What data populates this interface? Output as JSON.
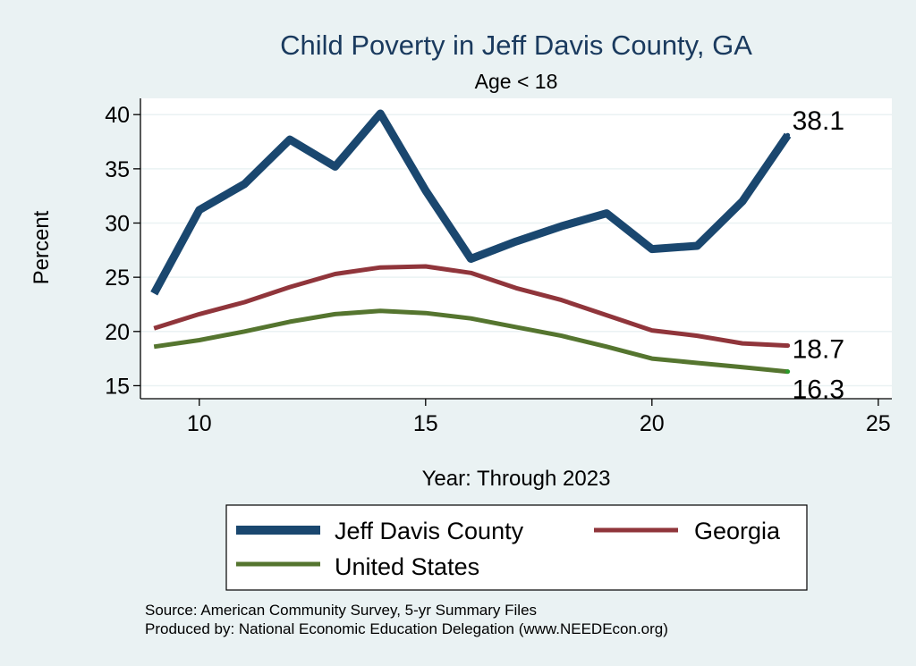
{
  "colors": {
    "background": "#eaf2f3",
    "plot_background": "#ffffff",
    "grid": "#eaf2f3",
    "jeff_davis": "#1a476f",
    "georgia": "#90353b",
    "united_states": "#55752f",
    "title": "#1a3a5e"
  },
  "chart_data": {
    "type": "line",
    "title": "Child Poverty in Jeff Davis County, GA",
    "subtitle": "Age < 18",
    "xlabel": "Year: Through 2023",
    "ylabel": "Percent",
    "xlim": [
      8.7,
      25.3
    ],
    "ylim": [
      13.8,
      41.5
    ],
    "xticks": [
      10,
      15,
      20,
      25
    ],
    "yticks": [
      15,
      20,
      25,
      30,
      35,
      40
    ],
    "x": [
      9,
      10,
      11,
      12,
      13,
      14,
      15,
      16,
      17,
      18,
      19,
      20,
      21,
      22,
      23
    ],
    "series": [
      {
        "name": "Jeff Davis County",
        "color": "#1a476f",
        "values": [
          23.5,
          31.2,
          33.6,
          37.7,
          35.2,
          40.1,
          33.0,
          26.7,
          28.3,
          29.7,
          30.9,
          27.6,
          27.9,
          32.0,
          38.1
        ],
        "end_label": "38.1"
      },
      {
        "name": "Georgia",
        "color": "#90353b",
        "values": [
          20.3,
          21.6,
          22.7,
          24.1,
          25.3,
          25.9,
          26.0,
          25.4,
          24.0,
          22.9,
          21.5,
          20.1,
          19.6,
          18.9,
          18.7
        ],
        "end_label": "18.7"
      },
      {
        "name": "United States",
        "color": "#55752f",
        "values": [
          18.6,
          19.2,
          20.0,
          20.9,
          21.6,
          21.9,
          21.7,
          21.2,
          20.4,
          19.6,
          18.6,
          17.5,
          17.1,
          16.7,
          16.3
        ],
        "end_label": "16.3"
      }
    ],
    "legend": {
      "position": "bottom",
      "entries": [
        "Jeff Davis County",
        "Georgia",
        "United States"
      ]
    },
    "notes": [
      "Source: American Community Survey, 5-yr Summary Files",
      "Produced by: National Economic Education Delegation (www.NEEDEcon.org)"
    ]
  }
}
